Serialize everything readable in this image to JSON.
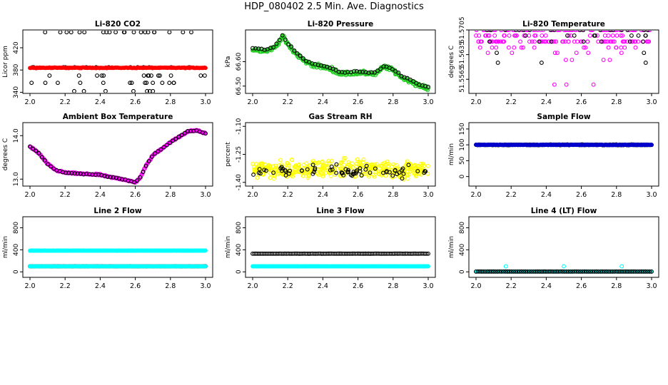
{
  "figure": {
    "title": "HDP_080402  2.5 Min. Ave. Diagnostics"
  },
  "colors": {
    "axis": "#000000",
    "black": "#000000",
    "red": "#ff0000",
    "green": "#22cc22",
    "magenta": "#ff00ff",
    "yellow": "#ffff00",
    "blue": "#0000cc",
    "cyan": "#00ffff"
  },
  "chart_data": [
    {
      "id": "co2",
      "type": "scatter",
      "title": "Li-820 CO2",
      "ylabel": "Licor ppm",
      "xlim": [
        2.0,
        3.0
      ],
      "ylim": [
        338,
        452
      ],
      "xticks": [
        "2.0",
        "2.2",
        "2.4",
        "2.6",
        "2.8",
        "3.0"
      ],
      "yticks": [
        {
          "v": 340,
          "label": "340"
        },
        {
          "v": 380,
          "label": "380"
        },
        {
          "v": 420,
          "label": "420"
        }
      ],
      "series": [
        {
          "name": "raw",
          "color": "black",
          "marker": "open",
          "kind": "discrete",
          "levels": [
            342,
            357,
            370,
            385,
            448
          ],
          "weights": [
            2,
            2,
            2,
            3,
            3
          ],
          "n": 70
        },
        {
          "name": "avg",
          "color": "red",
          "marker": "filled",
          "kind": "flat",
          "y": 384,
          "noise": 1,
          "n": 200
        }
      ]
    },
    {
      "id": "pressure",
      "type": "scatter",
      "title": "Li-820 Pressure",
      "ylabel": "kPa",
      "xlim": [
        2.0,
        3.0
      ],
      "ylim": [
        66.47,
        66.73
      ],
      "xticks": [
        "2.0",
        "2.2",
        "2.4",
        "2.6",
        "2.8",
        "3.0"
      ],
      "yticks": [
        {
          "v": 66.5,
          "label": "66.50"
        },
        {
          "v": 66.6,
          "label": "66.60"
        }
      ],
      "series": [
        {
          "name": "raw",
          "color": "green",
          "marker": "open",
          "kind": "curve",
          "pts": [
            [
              2.0,
              66.65
            ],
            [
              2.08,
              66.645
            ],
            [
              2.13,
              66.66
            ],
            [
              2.17,
              66.705
            ],
            [
              2.2,
              66.67
            ],
            [
              2.25,
              66.63
            ],
            [
              2.3,
              66.6
            ],
            [
              2.35,
              66.585
            ],
            [
              2.45,
              66.57
            ],
            [
              2.5,
              66.55
            ],
            [
              2.6,
              66.555
            ],
            [
              2.7,
              66.55
            ],
            [
              2.75,
              66.58
            ],
            [
              2.8,
              66.565
            ],
            [
              2.85,
              66.535
            ],
            [
              2.9,
              66.52
            ],
            [
              2.95,
              66.5
            ],
            [
              3.0,
              66.49
            ]
          ],
          "noise": 0.012,
          "n": 300
        },
        {
          "name": "avg",
          "color": "black",
          "marker": "open",
          "kind": "curve",
          "pts": [
            [
              2.0,
              66.655
            ],
            [
              2.08,
              66.65
            ],
            [
              2.13,
              66.665
            ],
            [
              2.17,
              66.71
            ],
            [
              2.2,
              66.675
            ],
            [
              2.25,
              66.635
            ],
            [
              2.3,
              66.605
            ],
            [
              2.35,
              66.59
            ],
            [
              2.45,
              66.575
            ],
            [
              2.5,
              66.555
            ],
            [
              2.6,
              66.56
            ],
            [
              2.7,
              66.555
            ],
            [
              2.75,
              66.585
            ],
            [
              2.8,
              66.57
            ],
            [
              2.85,
              66.54
            ],
            [
              2.9,
              66.525
            ],
            [
              2.95,
              66.505
            ],
            [
              3.0,
              66.495
            ]
          ],
          "noise": 0.004,
          "n": 60
        }
      ]
    },
    {
      "id": "temperature",
      "type": "scatter",
      "title": "Li-820 Temperature",
      "ylabel": "degrees C",
      "xlim": [
        2.0,
        3.0
      ],
      "ylim": [
        51.5525,
        51.5705
      ],
      "xticks": [
        "2.0",
        "2.2",
        "2.4",
        "2.6",
        "2.8",
        "3.0"
      ],
      "yticks": [
        {
          "v": 51.5705,
          "label": "51.5705"
        },
        {
          "v": 51.5635,
          "label": "51.5635"
        },
        {
          "v": 51.5565,
          "label": "51.5565"
        }
      ],
      "series": [
        {
          "name": "raw",
          "color": "magenta",
          "marker": "open",
          "kind": "discrete",
          "levels": [
            51.5705,
            51.5689,
            51.5672,
            51.5655,
            51.564,
            51.562,
            51.555
          ],
          "weights": [
            12,
            3,
            8,
            2,
            1,
            0.5,
            0.1
          ],
          "n": 220
        },
        {
          "name": "avg",
          "color": "black",
          "marker": "open",
          "kind": "discrete",
          "levels": [
            51.5705,
            51.5689,
            51.5672,
            51.564,
            51.5612
          ],
          "weights": [
            5,
            4,
            2,
            1,
            0.5
          ],
          "n": 40
        }
      ]
    },
    {
      "id": "ambient",
      "type": "scatter",
      "title": "Ambient Box Temperature",
      "ylabel": "degrees C",
      "xlim": [
        2.0,
        3.0
      ],
      "ylim": [
        12.84,
        14.3
      ],
      "xticks": [
        "2.0",
        "2.2",
        "2.4",
        "2.6",
        "2.8",
        "3.0"
      ],
      "yticks": [
        {
          "v": 13.0,
          "label": "13.0"
        },
        {
          "v": 14.0,
          "label": "14.0"
        }
      ],
      "series": [
        {
          "name": "raw",
          "color": "magenta",
          "marker": "open",
          "kind": "curve",
          "pts": [
            [
              2.0,
              13.75
            ],
            [
              2.05,
              13.6
            ],
            [
              2.1,
              13.35
            ],
            [
              2.15,
              13.2
            ],
            [
              2.2,
              13.15
            ],
            [
              2.3,
              13.12
            ],
            [
              2.4,
              13.1
            ],
            [
              2.45,
              13.05
            ],
            [
              2.5,
              13.02
            ],
            [
              2.55,
              12.98
            ],
            [
              2.6,
              12.92
            ],
            [
              2.63,
              13.05
            ],
            [
              2.66,
              13.3
            ],
            [
              2.7,
              13.55
            ],
            [
              2.8,
              13.85
            ],
            [
              2.9,
              14.1
            ],
            [
              2.95,
              14.12
            ],
            [
              3.0,
              14.05
            ]
          ],
          "noise": 0.025,
          "n": 320
        },
        {
          "name": "avg",
          "color": "black",
          "marker": "open",
          "kind": "curve",
          "pts": [
            [
              2.0,
              13.75
            ],
            [
              2.05,
              13.6
            ],
            [
              2.1,
              13.35
            ],
            [
              2.15,
              13.2
            ],
            [
              2.2,
              13.15
            ],
            [
              2.3,
              13.12
            ],
            [
              2.4,
              13.1
            ],
            [
              2.45,
              13.05
            ],
            [
              2.5,
              13.02
            ],
            [
              2.55,
              12.98
            ],
            [
              2.6,
              12.92
            ],
            [
              2.63,
              13.05
            ],
            [
              2.66,
              13.3
            ],
            [
              2.7,
              13.55
            ],
            [
              2.8,
              13.85
            ],
            [
              2.9,
              14.1
            ],
            [
              2.95,
              14.12
            ],
            [
              3.0,
              14.05
            ]
          ],
          "noise": 0.01,
          "n": 60
        }
      ]
    },
    {
      "id": "rh",
      "type": "scatter",
      "title": "Gas Stream RH",
      "ylabel": "percent",
      "xlim": [
        2.0,
        3.0
      ],
      "ylim": [
        -1.42,
        -1.08
      ],
      "xticks": [
        "2.0",
        "2.2",
        "2.4",
        "2.6",
        "2.8",
        "3.0"
      ],
      "yticks": [
        {
          "v": -1.1,
          "label": "-1.10"
        },
        {
          "v": -1.25,
          "label": "-1.25"
        },
        {
          "v": -1.4,
          "label": "-1.40"
        }
      ],
      "series": [
        {
          "name": "raw",
          "color": "yellow",
          "marker": "open",
          "kind": "band",
          "y": -1.33,
          "spread": 0.07,
          "n": 420
        },
        {
          "name": "avg",
          "color": "black",
          "marker": "open",
          "kind": "band",
          "y": -1.34,
          "spread": 0.045,
          "n": 70
        }
      ]
    },
    {
      "id": "sample",
      "type": "scatter",
      "title": "Sample Flow",
      "ylabel": "ml/min",
      "xlim": [
        2.0,
        3.0
      ],
      "ylim": [
        -30,
        170
      ],
      "xticks": [
        "2.0",
        "2.2",
        "2.4",
        "2.6",
        "2.8",
        "3.0"
      ],
      "yticks": [
        {
          "v": 0,
          "label": "0"
        },
        {
          "v": 50,
          "label": "50"
        },
        {
          "v": 100,
          "label": "100"
        },
        {
          "v": 150,
          "label": "150"
        }
      ],
      "series": [
        {
          "name": "avg",
          "color": "black",
          "marker": "open",
          "kind": "flat",
          "y": 100,
          "noise": 1.5,
          "n": 220
        },
        {
          "name": "raw",
          "color": "blue",
          "marker": "filled",
          "kind": "flat",
          "y": 100,
          "noise": 1.2,
          "n": 200
        }
      ]
    },
    {
      "id": "line2",
      "type": "scatter",
      "title": "Line 2 Flow",
      "ylabel": "ml/min",
      "xlim": [
        2.0,
        3.0
      ],
      "ylim": [
        -100,
        1000
      ],
      "xticks": [
        "2.0",
        "2.2",
        "2.4",
        "2.6",
        "2.8",
        "3.0"
      ],
      "yticks": [
        {
          "v": 0,
          "label": "0"
        },
        {
          "v": 400,
          "label": "400"
        },
        {
          "v": 800,
          "label": "800"
        }
      ],
      "series": [
        {
          "name": "line2",
          "color": "cyan",
          "marker": "filled",
          "kind": "flat",
          "y": 385,
          "noise": 4,
          "n": 300
        },
        {
          "name": "ref",
          "color": "black",
          "marker": "open",
          "kind": "flat",
          "y": 100,
          "noise": 1,
          "n": 110
        },
        {
          "name": "ref-cyan",
          "color": "cyan",
          "marker": "filled",
          "kind": "flat",
          "y": 100,
          "noise": 1,
          "n": 120
        }
      ]
    },
    {
      "id": "line3",
      "type": "scatter",
      "title": "Line 3 Flow",
      "ylabel": "ml/min",
      "xlim": [
        2.0,
        3.0
      ],
      "ylim": [
        -100,
        1000
      ],
      "xticks": [
        "2.0",
        "2.2",
        "2.4",
        "2.6",
        "2.8",
        "3.0"
      ],
      "yticks": [
        {
          "v": 0,
          "label": "0"
        },
        {
          "v": 400,
          "label": "400"
        },
        {
          "v": 800,
          "label": "800"
        }
      ],
      "series": [
        {
          "name": "line3",
          "color": "black",
          "marker": "open",
          "kind": "flat",
          "y": 330,
          "noise": 2,
          "n": 110
        },
        {
          "name": "line3-cyan",
          "color": "cyan",
          "marker": "filled",
          "kind": "flat",
          "y": 100,
          "noise": 2,
          "n": 300
        }
      ]
    },
    {
      "id": "line4",
      "type": "scatter",
      "title": "Line 4 (LT) Flow",
      "ylabel": "ml/min",
      "xlim": [
        2.0,
        3.0
      ],
      "ylim": [
        -100,
        1000
      ],
      "xticks": [
        "2.0",
        "2.2",
        "2.4",
        "2.6",
        "2.8",
        "3.0"
      ],
      "yticks": [
        {
          "v": 0,
          "label": "0"
        },
        {
          "v": 400,
          "label": "400"
        },
        {
          "v": 800,
          "label": "800"
        }
      ],
      "series": [
        {
          "name": "line4-cyan",
          "color": "cyan",
          "marker": "filled",
          "kind": "flat",
          "y": 5,
          "noise": 1,
          "n": 100
        },
        {
          "name": "line4",
          "color": "black",
          "marker": "open",
          "kind": "flat",
          "y": 5,
          "noise": 1,
          "n": 90
        },
        {
          "name": "spikes",
          "color": "cyan",
          "marker": "open",
          "kind": "points",
          "pts": [
            [
              2.17,
              100
            ],
            [
              2.5,
              100
            ],
            [
              2.83,
              100
            ]
          ]
        }
      ]
    }
  ]
}
